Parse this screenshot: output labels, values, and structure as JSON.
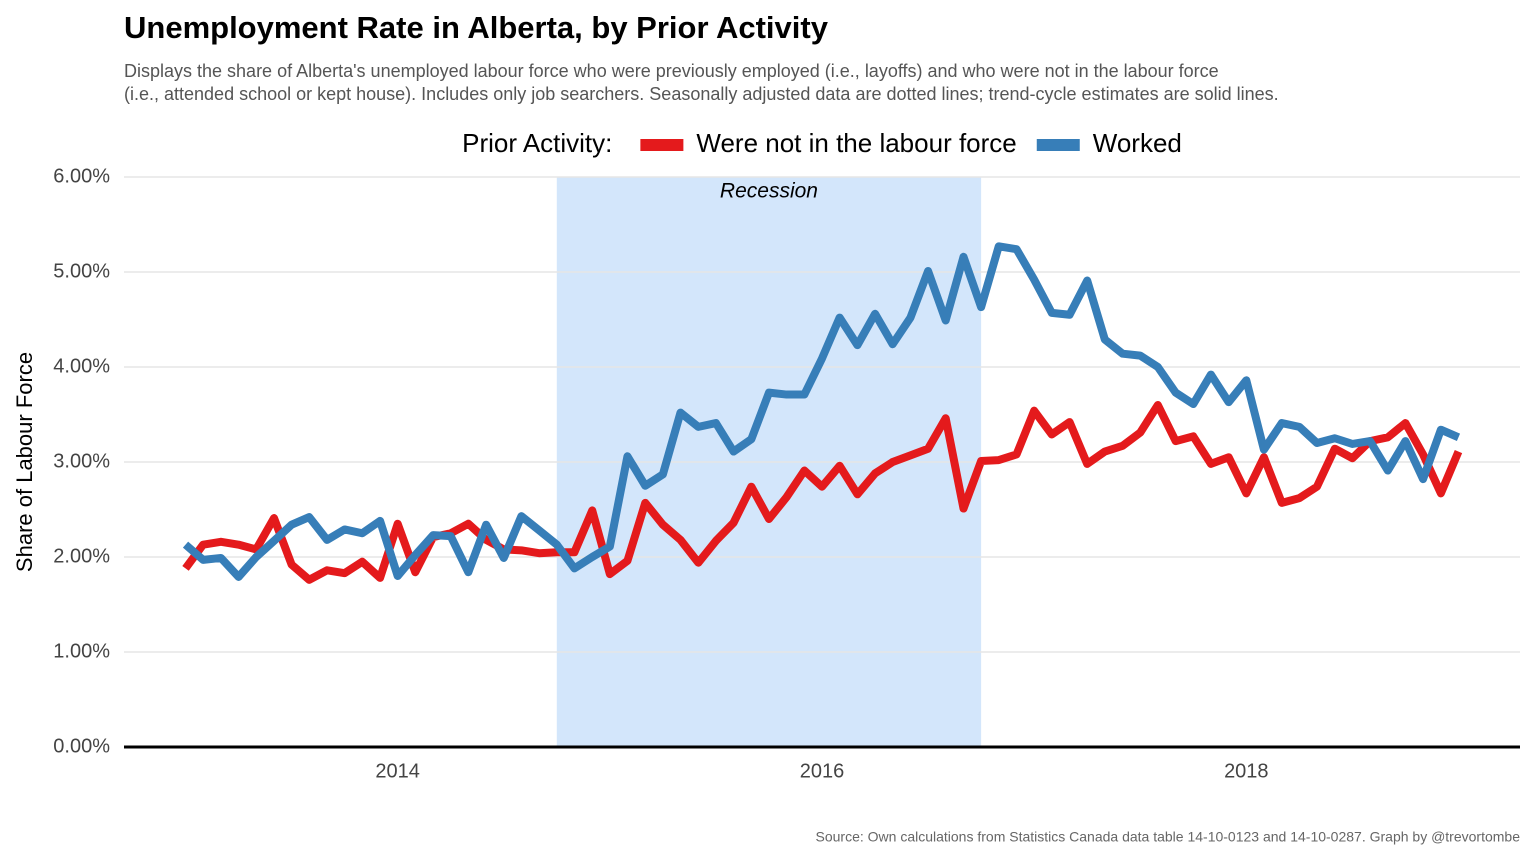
{
  "chart_data": {
    "type": "line",
    "title": "Unemployment Rate in Alberta, by Prior Activity",
    "subtitle": [
      "Displays the share of Alberta's unemployed labour force who were previously employed (i.e., layoffs) and who were not in the labour force",
      "(i.e., attended school or kept house). Includes only job searchers. Seasonally adjusted data are dotted lines; trend-cycle estimates are solid lines."
    ],
    "caption": "Source: Own calculations from Statistics Canada data table 14-10-0123 and 14-10-0287. Graph by @trevortombe",
    "y_label": "Share of Labour Force",
    "legend_title": "Prior Activity:",
    "legend_position": "top",
    "grid": true,
    "shade": {
      "range": [
        2014.75,
        2016.75
      ],
      "label": "Recession",
      "color": "#d3e6fb"
    },
    "xlim": [
      2012.71,
      2019.29
    ],
    "xticks": [
      2014,
      2016,
      2018
    ],
    "ylim": [
      0,
      6
    ],
    "yticks": [
      {
        "value": 0,
        "label": "0.00%"
      },
      {
        "value": 1,
        "label": "1.00%"
      },
      {
        "value": 2,
        "label": "2.00%"
      },
      {
        "value": 3,
        "label": "3.00%"
      },
      {
        "value": 4,
        "label": "4.00%"
      },
      {
        "value": 5,
        "label": "5.00%"
      },
      {
        "value": 6,
        "label": "6.00%"
      }
    ],
    "x": [
      2013,
      2013.083,
      2013.167,
      2013.25,
      2013.333,
      2013.417,
      2013.5,
      2013.583,
      2013.667,
      2013.75,
      2013.833,
      2013.917,
      2014,
      2014.083,
      2014.167,
      2014.25,
      2014.333,
      2014.417,
      2014.5,
      2014.583,
      2014.667,
      2014.75,
      2014.833,
      2014.917,
      2015,
      2015.083,
      2015.167,
      2015.25,
      2015.333,
      2015.417,
      2015.5,
      2015.583,
      2015.667,
      2015.75,
      2015.833,
      2015.917,
      2016,
      2016.083,
      2016.167,
      2016.25,
      2016.333,
      2016.417,
      2016.5,
      2016.583,
      2016.667,
      2016.75,
      2016.833,
      2016.917,
      2017,
      2017.083,
      2017.167,
      2017.25,
      2017.333,
      2017.417,
      2017.5,
      2017.583,
      2017.667,
      2017.75,
      2017.833,
      2017.917,
      2018,
      2018.083,
      2018.167,
      2018.25,
      2018.333,
      2018.417,
      2018.5,
      2018.583,
      2018.667,
      2018.75,
      2018.833,
      2018.917,
      2019
    ],
    "series": [
      {
        "name": "Were not in the labour force",
        "color": "#e41a1c",
        "values": [
          1.88,
          2.13,
          2.16,
          2.13,
          2.08,
          2.41,
          1.92,
          1.76,
          1.86,
          1.83,
          1.95,
          1.78,
          2.35,
          1.84,
          2.21,
          2.25,
          2.35,
          2.18,
          2.08,
          2.07,
          2.04,
          2.05,
          2.05,
          2.49,
          1.82,
          1.96,
          2.57,
          2.34,
          2.18,
          1.94,
          2.17,
          2.36,
          2.74,
          2.4,
          2.63,
          2.91,
          2.74,
          2.96,
          2.66,
          2.88,
          3.0,
          3.07,
          3.14,
          3.46,
          2.51,
          3.01,
          3.02,
          3.08,
          3.54,
          3.29,
          3.42,
          2.98,
          3.11,
          3.17,
          3.31,
          3.6,
          3.22,
          3.27,
          2.98,
          3.05,
          2.67,
          3.05,
          2.57,
          2.62,
          2.74,
          3.14,
          3.04,
          3.22,
          3.26,
          3.41,
          3.08,
          2.67,
          3.11
        ]
      },
      {
        "name": "Worked",
        "color": "#377eb8",
        "values": [
          2.13,
          1.97,
          1.99,
          1.79,
          2.0,
          2.17,
          2.34,
          2.42,
          2.18,
          2.29,
          2.25,
          2.38,
          1.8,
          2.02,
          2.23,
          2.22,
          1.84,
          2.34,
          1.99,
          2.43,
          2.28,
          2.13,
          1.88,
          2.0,
          2.11,
          3.06,
          2.75,
          2.87,
          3.52,
          3.37,
          3.41,
          3.11,
          3.24,
          3.73,
          3.71,
          3.71,
          4.09,
          4.52,
          4.23,
          4.56,
          4.24,
          4.52,
          5.01,
          4.49,
          5.16,
          4.63,
          5.27,
          5.24,
          4.92,
          4.57,
          4.55,
          4.91,
          4.29,
          4.14,
          4.12,
          4.0,
          3.73,
          3.61,
          3.92,
          3.63,
          3.86,
          3.13,
          3.41,
          3.37,
          3.2,
          3.25,
          3.19,
          3.22,
          2.91,
          3.22,
          2.82,
          3.34,
          3.26
        ]
      }
    ]
  }
}
